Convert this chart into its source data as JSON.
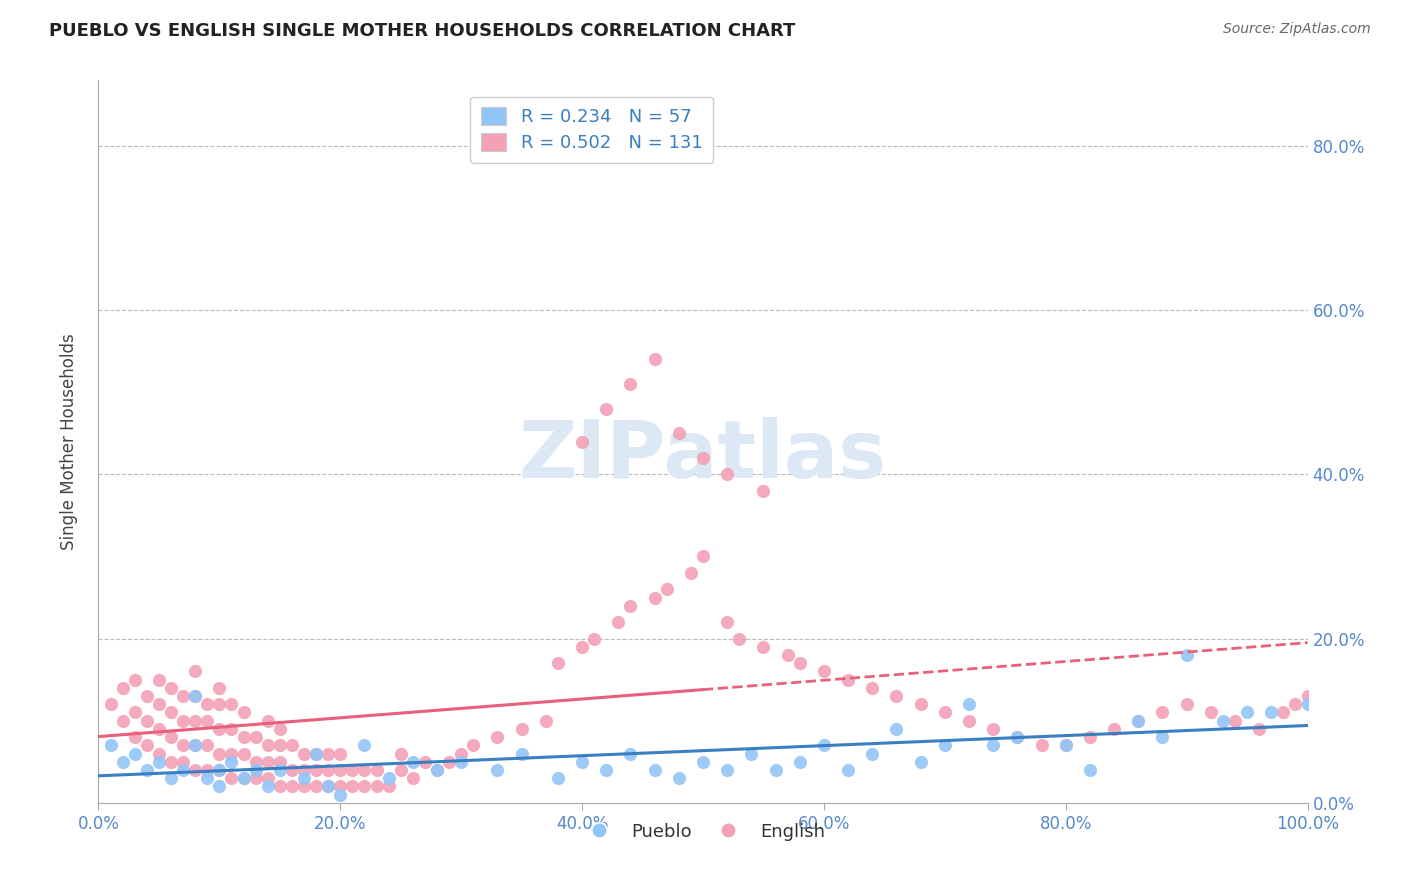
{
  "title": "PUEBLO VS ENGLISH SINGLE MOTHER HOUSEHOLDS CORRELATION CHART",
  "source": "Source: ZipAtlas.com",
  "ylabel": "Single Mother Households",
  "xlim": [
    0.0,
    1.0
  ],
  "ylim": [
    0.0,
    0.88
  ],
  "pueblo_R": 0.234,
  "pueblo_N": 57,
  "english_R": 0.502,
  "english_N": 131,
  "pueblo_color": "#92c5f7",
  "english_color": "#f4a0b5",
  "pueblo_line_color": "#3a7fc1",
  "english_line_color": "#e8607a",
  "legend_text_color": "#3a7fc1",
  "axis_tick_color": "#5588cc",
  "watermark_color": "#dce8f5",
  "pueblo_x": [
    0.01,
    0.02,
    0.03,
    0.04,
    0.05,
    0.06,
    0.07,
    0.08,
    0.08,
    0.09,
    0.1,
    0.1,
    0.11,
    0.12,
    0.13,
    0.14,
    0.15,
    0.17,
    0.18,
    0.19,
    0.2,
    0.22,
    0.24,
    0.26,
    0.28,
    0.3,
    0.33,
    0.35,
    0.38,
    0.4,
    0.42,
    0.44,
    0.46,
    0.48,
    0.5,
    0.52,
    0.54,
    0.56,
    0.58,
    0.6,
    0.62,
    0.64,
    0.66,
    0.68,
    0.7,
    0.72,
    0.74,
    0.76,
    0.8,
    0.82,
    0.86,
    0.88,
    0.9,
    0.93,
    0.95,
    0.97,
    1.0
  ],
  "pueblo_y": [
    0.07,
    0.05,
    0.06,
    0.04,
    0.05,
    0.03,
    0.04,
    0.07,
    0.13,
    0.03,
    0.04,
    0.02,
    0.05,
    0.03,
    0.04,
    0.02,
    0.04,
    0.03,
    0.06,
    0.02,
    0.01,
    0.07,
    0.03,
    0.05,
    0.04,
    0.05,
    0.04,
    0.06,
    0.03,
    0.05,
    0.04,
    0.06,
    0.04,
    0.03,
    0.05,
    0.04,
    0.06,
    0.04,
    0.05,
    0.07,
    0.04,
    0.06,
    0.09,
    0.05,
    0.07,
    0.12,
    0.07,
    0.08,
    0.07,
    0.04,
    0.1,
    0.08,
    0.18,
    0.1,
    0.11,
    0.11,
    0.12
  ],
  "english_x": [
    0.01,
    0.02,
    0.02,
    0.03,
    0.03,
    0.03,
    0.04,
    0.04,
    0.04,
    0.05,
    0.05,
    0.05,
    0.05,
    0.06,
    0.06,
    0.06,
    0.06,
    0.07,
    0.07,
    0.07,
    0.07,
    0.08,
    0.08,
    0.08,
    0.08,
    0.08,
    0.09,
    0.09,
    0.09,
    0.09,
    0.1,
    0.1,
    0.1,
    0.1,
    0.1,
    0.11,
    0.11,
    0.11,
    0.11,
    0.12,
    0.12,
    0.12,
    0.12,
    0.13,
    0.13,
    0.13,
    0.14,
    0.14,
    0.14,
    0.14,
    0.15,
    0.15,
    0.15,
    0.15,
    0.16,
    0.16,
    0.16,
    0.17,
    0.17,
    0.17,
    0.18,
    0.18,
    0.18,
    0.19,
    0.19,
    0.19,
    0.2,
    0.2,
    0.2,
    0.21,
    0.21,
    0.22,
    0.22,
    0.23,
    0.23,
    0.24,
    0.25,
    0.25,
    0.26,
    0.27,
    0.28,
    0.29,
    0.3,
    0.31,
    0.33,
    0.35,
    0.37,
    0.38,
    0.4,
    0.41,
    0.43,
    0.44,
    0.46,
    0.47,
    0.49,
    0.5,
    0.52,
    0.53,
    0.55,
    0.57,
    0.58,
    0.6,
    0.62,
    0.64,
    0.66,
    0.68,
    0.7,
    0.72,
    0.74,
    0.76,
    0.78,
    0.8,
    0.82,
    0.84,
    0.86,
    0.88,
    0.9,
    0.92,
    0.94,
    0.96,
    0.98,
    0.99,
    1.0,
    0.4,
    0.42,
    0.44,
    0.46,
    0.48,
    0.5,
    0.52,
    0.55
  ],
  "english_y": [
    0.12,
    0.1,
    0.14,
    0.08,
    0.11,
    0.15,
    0.07,
    0.1,
    0.13,
    0.06,
    0.09,
    0.12,
    0.15,
    0.05,
    0.08,
    0.11,
    0.14,
    0.05,
    0.07,
    0.1,
    0.13,
    0.04,
    0.07,
    0.1,
    0.13,
    0.16,
    0.04,
    0.07,
    0.1,
    0.12,
    0.04,
    0.06,
    0.09,
    0.12,
    0.14,
    0.03,
    0.06,
    0.09,
    0.12,
    0.03,
    0.06,
    0.08,
    0.11,
    0.03,
    0.05,
    0.08,
    0.03,
    0.05,
    0.07,
    0.1,
    0.02,
    0.05,
    0.07,
    0.09,
    0.02,
    0.04,
    0.07,
    0.02,
    0.04,
    0.06,
    0.02,
    0.04,
    0.06,
    0.02,
    0.04,
    0.06,
    0.02,
    0.04,
    0.06,
    0.02,
    0.04,
    0.02,
    0.04,
    0.02,
    0.04,
    0.02,
    0.04,
    0.06,
    0.03,
    0.05,
    0.04,
    0.05,
    0.06,
    0.07,
    0.08,
    0.09,
    0.1,
    0.17,
    0.19,
    0.2,
    0.22,
    0.24,
    0.25,
    0.26,
    0.28,
    0.3,
    0.22,
    0.2,
    0.19,
    0.18,
    0.17,
    0.16,
    0.15,
    0.14,
    0.13,
    0.12,
    0.11,
    0.1,
    0.09,
    0.08,
    0.07,
    0.07,
    0.08,
    0.09,
    0.1,
    0.11,
    0.12,
    0.11,
    0.1,
    0.09,
    0.11,
    0.12,
    0.13,
    0.44,
    0.48,
    0.51,
    0.54,
    0.45,
    0.42,
    0.4,
    0.38
  ]
}
